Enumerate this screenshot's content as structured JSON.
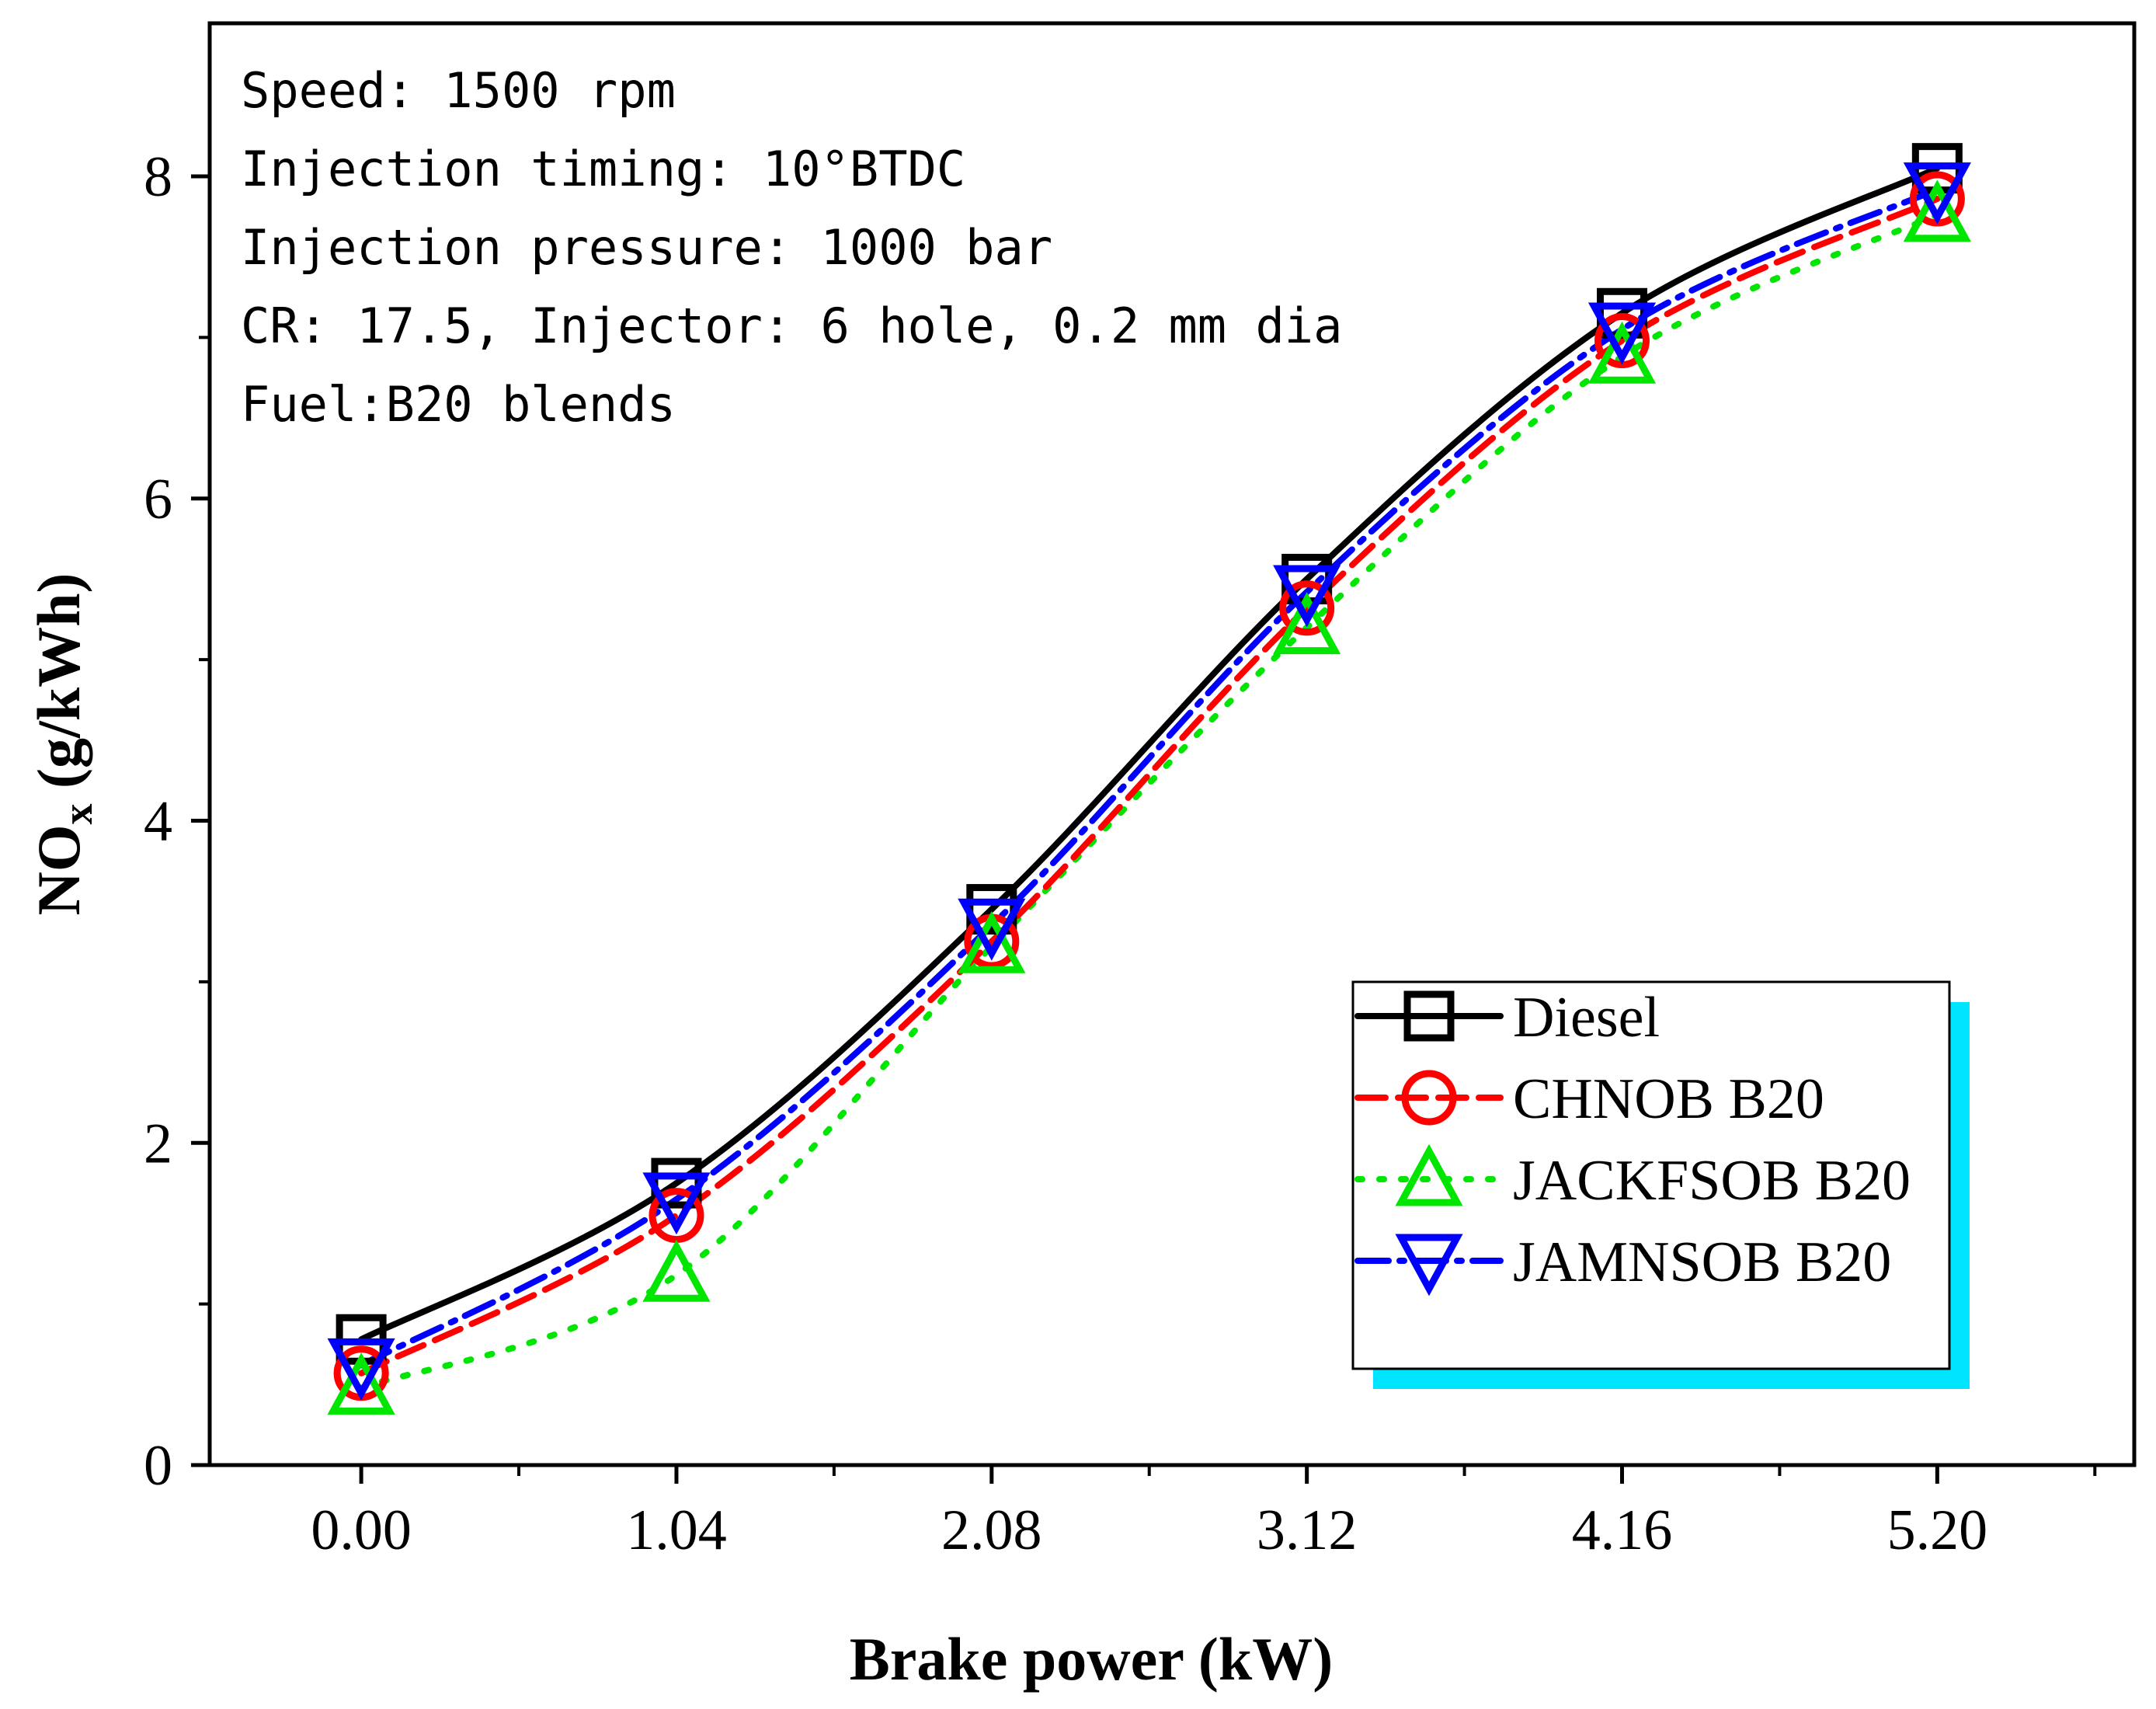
{
  "chart_data": {
    "type": "line",
    "title": "",
    "xlabel": "Brake power (kW)",
    "ylabel_main": "NO",
    "ylabel_sub": "x",
    "ylabel_unit": " (g/kWh)",
    "x": [
      0.0,
      1.04,
      2.08,
      3.12,
      4.16,
      5.2
    ],
    "x_tick_labels": [
      "0.00",
      "1.04",
      "2.08",
      "3.12",
      "4.16",
      "5.20"
    ],
    "xlim": [
      -0.5,
      5.85
    ],
    "ylim": [
      0,
      8.95
    ],
    "y_ticks": [
      0,
      2,
      4,
      6,
      8
    ],
    "y_tick_labels": [
      "0",
      "2",
      "4",
      "6",
      "8"
    ],
    "grid": false,
    "legend_position": "bottom-right",
    "annotations": [
      "Speed: 1500 rpm",
      "Injection timing: 10°BTDC",
      "Injection pressure: 1000 bar",
      "CR: 17.5, Injector: 6 hole, 0.2 mm dia",
      "Fuel:B20 blends"
    ],
    "series": [
      {
        "name": "Diesel",
        "values": [
          0.78,
          1.75,
          3.45,
          5.5,
          7.15,
          8.05
        ],
        "color": "#000000",
        "marker": "square",
        "dash": ""
      },
      {
        "name": "CHNOB B20",
        "values": [
          0.57,
          1.55,
          3.25,
          5.32,
          6.98,
          7.86
        ],
        "color": "#ff0000",
        "marker": "circle",
        "dash": "36 16"
      },
      {
        "name": "JACKFSOB B20",
        "values": [
          0.48,
          1.18,
          3.22,
          5.2,
          6.88,
          7.76
        ],
        "color": "#00e600",
        "marker": "triangle-up",
        "dash": "6 22"
      },
      {
        "name": "JAMNSOB B20",
        "values": [
          0.62,
          1.65,
          3.35,
          5.42,
          7.05,
          7.92
        ],
        "color": "#0000ff",
        "marker": "triangle-down",
        "dash": "40 14 6 14"
      }
    ],
    "legend_shadow_color": "#00e5ff"
  }
}
